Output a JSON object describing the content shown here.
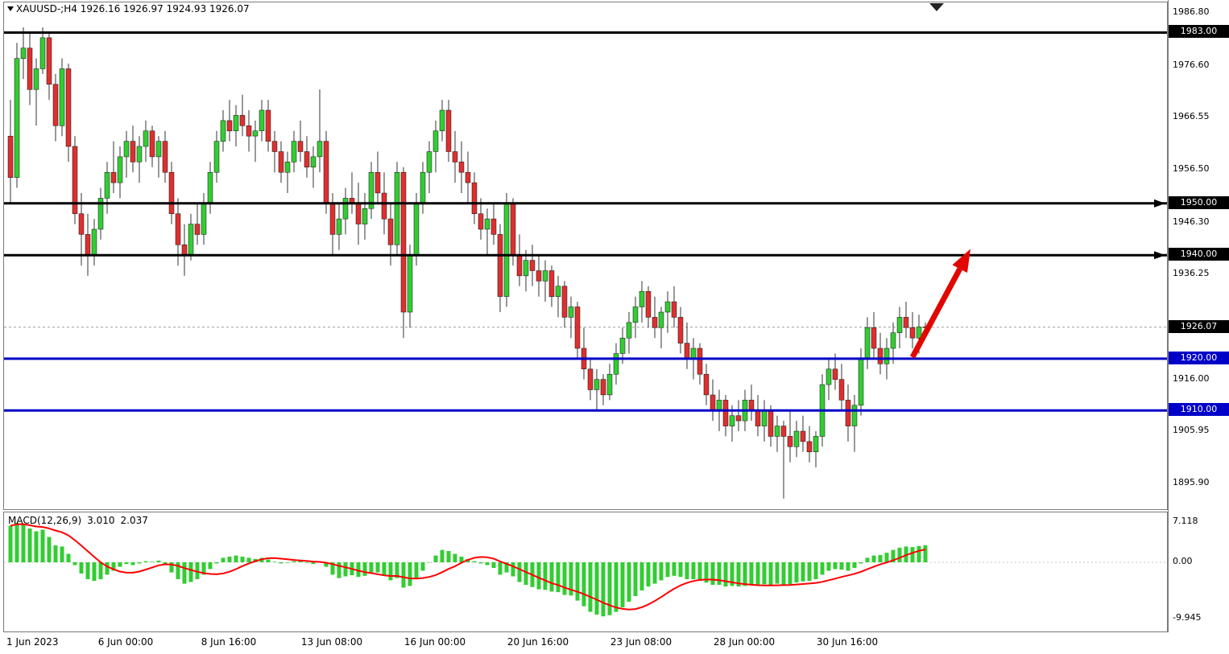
{
  "header": {
    "symbol_line": "XAUUSD-;H4 1926.16 1926.97 1924.93 1926.07",
    "symbol": "XAUUSD-",
    "timeframe": "H4"
  },
  "chart_data": {
    "type": "candlestick",
    "title": "XAUUSD- H4",
    "current_bar": {
      "open": 1926.16,
      "high": 1926.97,
      "low": 1924.93,
      "close": 1926.07
    },
    "current_price": 1926.07,
    "current_price_badge": {
      "label": "1926.07",
      "color": "#000000"
    },
    "price_axis_ticks": [
      "1986.80",
      "1976.60",
      "1966.55",
      "1956.50",
      "1946.30",
      "1936.25",
      "1916.00",
      "1905.95",
      "1895.90"
    ],
    "horizontal_levels": [
      {
        "price": 1983.0,
        "label": "1983.00",
        "color": "#000000",
        "type": "resistance",
        "ray_marker": false
      },
      {
        "price": 1950.0,
        "label": "1950.00",
        "color": "#000000",
        "type": "resistance",
        "ray_marker": true
      },
      {
        "price": 1940.0,
        "label": "1940.00",
        "color": "#000000",
        "type": "resistance",
        "ray_marker": true
      },
      {
        "price": 1920.0,
        "label": "1920.00",
        "color": "#0000C8",
        "type": "support",
        "ray_marker": false
      },
      {
        "price": 1910.0,
        "label": "1910.00",
        "color": "#0000C8",
        "type": "support",
        "ray_marker": false
      }
    ],
    "time_labels": [
      {
        "label": "1 Jun 2023",
        "bar": 0
      },
      {
        "label": "6 Jun 00:00",
        "bar": 18
      },
      {
        "label": "8 Jun 16:00",
        "bar": 34
      },
      {
        "label": "13 Jun 08:00",
        "bar": 50
      },
      {
        "label": "16 Jun 00:00",
        "bar": 66
      },
      {
        "label": "20 Jun 16:00",
        "bar": 82
      },
      {
        "label": "23 Jun 08:00",
        "bar": 98
      },
      {
        "label": "28 Jun 00:00",
        "bar": 114
      },
      {
        "label": "30 Jun 16:00",
        "bar": 130
      }
    ],
    "candles_ohlc": [
      [
        1963,
        1970,
        1950,
        1955
      ],
      [
        1955,
        1981,
        1953,
        1978
      ],
      [
        1978,
        1984,
        1974,
        1980
      ],
      [
        1980,
        1983,
        1969,
        1972
      ],
      [
        1972,
        1978,
        1965,
        1976
      ],
      [
        1976,
        1984,
        1975,
        1982
      ],
      [
        1982,
        1983,
        1970,
        1973
      ],
      [
        1973,
        1975,
        1962,
        1965
      ],
      [
        1965,
        1978,
        1963,
        1976
      ],
      [
        1976,
        1977,
        1958,
        1961
      ],
      [
        1961,
        1963,
        1946,
        1948
      ],
      [
        1948,
        1952,
        1938,
        1944
      ],
      [
        1944,
        1948,
        1936,
        1940
      ],
      [
        1940,
        1947,
        1938,
        1945
      ],
      [
        1945,
        1953,
        1943,
        1951
      ],
      [
        1951,
        1958,
        1948,
        1956
      ],
      [
        1956,
        1962,
        1952,
        1954
      ],
      [
        1954,
        1961,
        1951,
        1959
      ],
      [
        1959,
        1964,
        1955,
        1962
      ],
      [
        1962,
        1965,
        1956,
        1958
      ],
      [
        1958,
        1963,
        1954,
        1961
      ],
      [
        1961,
        1966,
        1958,
        1964
      ],
      [
        1964,
        1965,
        1957,
        1959
      ],
      [
        1959,
        1963,
        1955,
        1962
      ],
      [
        1962,
        1964,
        1954,
        1956
      ],
      [
        1956,
        1958,
        1946,
        1948
      ],
      [
        1948,
        1951,
        1938,
        1942
      ],
      [
        1942,
        1946,
        1936,
        1940
      ],
      [
        1940,
        1948,
        1939,
        1946
      ],
      [
        1946,
        1950,
        1942,
        1944
      ],
      [
        1944,
        1952,
        1942,
        1950
      ],
      [
        1950,
        1958,
        1948,
        1956
      ],
      [
        1956,
        1964,
        1954,
        1962
      ],
      [
        1962,
        1968,
        1960,
        1966
      ],
      [
        1966,
        1970,
        1962,
        1964
      ],
      [
        1964,
        1969,
        1961,
        1967
      ],
      [
        1967,
        1971,
        1963,
        1965
      ],
      [
        1965,
        1968,
        1960,
        1963
      ],
      [
        1963,
        1966,
        1958,
        1964
      ],
      [
        1964,
        1970,
        1962,
        1968
      ],
      [
        1968,
        1970,
        1960,
        1962
      ],
      [
        1962,
        1964,
        1956,
        1960
      ],
      [
        1960,
        1962,
        1954,
        1956
      ],
      [
        1956,
        1960,
        1952,
        1958
      ],
      [
        1958,
        1964,
        1956,
        1962
      ],
      [
        1962,
        1966,
        1958,
        1960
      ],
      [
        1960,
        1963,
        1955,
        1957
      ],
      [
        1957,
        1961,
        1953,
        1959
      ],
      [
        1959,
        1972,
        1956,
        1962
      ],
      [
        1962,
        1964,
        1948,
        1950
      ],
      [
        1950,
        1952,
        1940,
        1944
      ],
      [
        1944,
        1950,
        1941,
        1947
      ],
      [
        1947,
        1953,
        1944,
        1951
      ],
      [
        1951,
        1956,
        1948,
        1950
      ],
      [
        1950,
        1954,
        1942,
        1946
      ],
      [
        1946,
        1952,
        1943,
        1949
      ],
      [
        1949,
        1958,
        1947,
        1956
      ],
      [
        1956,
        1960,
        1950,
        1952
      ],
      [
        1952,
        1956,
        1944,
        1947
      ],
      [
        1947,
        1950,
        1938,
        1942
      ],
      [
        1942,
        1958,
        1940,
        1956
      ],
      [
        1956,
        1957,
        1924,
        1929
      ],
      [
        1929,
        1942,
        1926,
        1940
      ],
      [
        1940,
        1952,
        1938,
        1950
      ],
      [
        1950,
        1958,
        1948,
        1956
      ],
      [
        1956,
        1962,
        1952,
        1960
      ],
      [
        1960,
        1966,
        1956,
        1964
      ],
      [
        1964,
        1970,
        1962,
        1968
      ],
      [
        1968,
        1970,
        1958,
        1960
      ],
      [
        1960,
        1964,
        1954,
        1958
      ],
      [
        1958,
        1962,
        1952,
        1956
      ],
      [
        1956,
        1960,
        1950,
        1954
      ],
      [
        1954,
        1956,
        1946,
        1948
      ],
      [
        1948,
        1951,
        1943,
        1945
      ],
      [
        1945,
        1949,
        1940,
        1947
      ],
      [
        1947,
        1950,
        1942,
        1944
      ],
      [
        1944,
        1946,
        1929,
        1932
      ],
      [
        1932,
        1952,
        1930,
        1950
      ],
      [
        1950,
        1951,
        1938,
        1940
      ],
      [
        1940,
        1944,
        1934,
        1936
      ],
      [
        1936,
        1941,
        1933,
        1939
      ],
      [
        1939,
        1942,
        1934,
        1937
      ],
      [
        1937,
        1940,
        1932,
        1935
      ],
      [
        1935,
        1939,
        1931,
        1937
      ],
      [
        1937,
        1938,
        1930,
        1932
      ],
      [
        1932,
        1936,
        1928,
        1934
      ],
      [
        1934,
        1935,
        1926,
        1928
      ],
      [
        1928,
        1932,
        1924,
        1930
      ],
      [
        1930,
        1931,
        1920,
        1922
      ],
      [
        1922,
        1926,
        1916,
        1918
      ],
      [
        1918,
        1920,
        1912,
        1914
      ],
      [
        1914,
        1918,
        1910,
        1916
      ],
      [
        1916,
        1917,
        1911,
        1913
      ],
      [
        1913,
        1919,
        1912,
        1917
      ],
      [
        1917,
        1923,
        1915,
        1921
      ],
      [
        1921,
        1926,
        1919,
        1924
      ],
      [
        1924,
        1929,
        1921,
        1927
      ],
      [
        1927,
        1932,
        1924,
        1930
      ],
      [
        1930,
        1935,
        1927,
        1933
      ],
      [
        1933,
        1934,
        1926,
        1928
      ],
      [
        1928,
        1932,
        1924,
        1926
      ],
      [
        1926,
        1930,
        1922,
        1929
      ],
      [
        1929,
        1933,
        1925,
        1931
      ],
      [
        1931,
        1934,
        1926,
        1928
      ],
      [
        1928,
        1930,
        1921,
        1923
      ],
      [
        1923,
        1927,
        1918,
        1920
      ],
      [
        1920,
        1924,
        1916,
        1922
      ],
      [
        1922,
        1923,
        1915,
        1917
      ],
      [
        1917,
        1919,
        1911,
        1913
      ],
      [
        1913,
        1916,
        1908,
        1910
      ],
      [
        1910,
        1914,
        1906,
        1912
      ],
      [
        1912,
        1913,
        1905,
        1907
      ],
      [
        1907,
        1911,
        1904,
        1909
      ],
      [
        1909,
        1912,
        1906,
        1908
      ],
      [
        1908,
        1914,
        1906,
        1912
      ],
      [
        1912,
        1915,
        1908,
        1910
      ],
      [
        1910,
        1913,
        1905,
        1907
      ],
      [
        1907,
        1912,
        1904,
        1910
      ],
      [
        1910,
        1911,
        1903,
        1905
      ],
      [
        1905,
        1909,
        1902,
        1907
      ],
      [
        1907,
        1908,
        1893,
        1905
      ],
      [
        1905,
        1910,
        1900,
        1903
      ],
      [
        1903,
        1908,
        1901,
        1906
      ],
      [
        1906,
        1909,
        1902,
        1904
      ],
      [
        1904,
        1907,
        1900,
        1902
      ],
      [
        1902,
        1906,
        1899,
        1905
      ],
      [
        1905,
        1917,
        1903,
        1915
      ],
      [
        1915,
        1920,
        1912,
        1918
      ],
      [
        1918,
        1921,
        1914,
        1916
      ],
      [
        1916,
        1919,
        1910,
        1912
      ],
      [
        1912,
        1915,
        1904,
        1907
      ],
      [
        1907,
        1913,
        1902,
        1911
      ],
      [
        1911,
        1922,
        1909,
        1920
      ],
      [
        1920,
        1928,
        1918,
        1926
      ],
      [
        1926,
        1929,
        1920,
        1922
      ],
      [
        1922,
        1925,
        1917,
        1919
      ],
      [
        1919,
        1924,
        1916,
        1922
      ],
      [
        1922,
        1927,
        1919,
        1925
      ],
      [
        1925,
        1930,
        1922,
        1928
      ],
      [
        1928,
        1931,
        1924,
        1926
      ],
      [
        1926,
        1929,
        1922,
        1924
      ],
      [
        1924,
        1928.5,
        1921,
        1926.16
      ],
      [
        1926.16,
        1926.97,
        1924.93,
        1926.07
      ]
    ],
    "trend_arrow": {
      "from": {
        "bar": 140,
        "price": 1920.3
      },
      "to": {
        "bar": 149,
        "price": 1941.2
      },
      "color": "#E10600"
    },
    "macd": {
      "label": "MACD(12,26,9)",
      "main_value": "3.010",
      "signal_value": "2.037",
      "axis_ticks": [
        "7.118",
        "0.00",
        "-9.945"
      ],
      "histogram": [
        6.5,
        7.0,
        6.8,
        6.0,
        5.5,
        5.8,
        4.5,
        3.0,
        2.8,
        1.5,
        -0.5,
        -2.0,
        -3.0,
        -3.3,
        -3.0,
        -2.2,
        -1.5,
        -0.8,
        -0.3,
        -0.5,
        -0.2,
        0.2,
        0.1,
        0.3,
        -0.5,
        -1.8,
        -3.0,
        -3.8,
        -3.5,
        -3.0,
        -2.2,
        -1.2,
        -0.2,
        0.8,
        1.0,
        1.2,
        1.0,
        0.8,
        0.6,
        0.8,
        0.5,
        0.1,
        -0.2,
        -0.1,
        0.2,
        0.3,
        -0.1,
        -0.3,
        0.2,
        -0.8,
        -2.2,
        -2.8,
        -2.5,
        -2.3,
        -2.6,
        -2.4,
        -1.8,
        -1.8,
        -2.4,
        -3.2,
        -2.8,
        -4.5,
        -4.2,
        -3.0,
        -1.5,
        0.0,
        1.2,
        2.2,
        2.0,
        1.5,
        1.0,
        0.6,
        0.2,
        -0.2,
        -0.5,
        -1.0,
        -2.2,
        -1.8,
        -2.5,
        -3.5,
        -4.0,
        -4.4,
        -4.8,
        -4.9,
        -5.2,
        -5.3,
        -5.8,
        -5.9,
        -6.8,
        -7.8,
        -8.8,
        -9.3,
        -9.6,
        -9.4,
        -8.8,
        -8.0,
        -7.0,
        -6.0,
        -5.0,
        -4.3,
        -3.8,
        -3.2,
        -2.6,
        -2.4,
        -2.6,
        -3.0,
        -3.0,
        -3.3,
        -3.6,
        -4.0,
        -4.0,
        -4.3,
        -4.2,
        -4.3,
        -4.2,
        -4.0,
        -4.1,
        -3.9,
        -4.0,
        -3.8,
        -4.0,
        -3.9,
        -3.6,
        -3.4,
        -3.3,
        -3.0,
        -2.2,
        -1.5,
        -1.2,
        -1.3,
        -1.5,
        -1.0,
        -0.2,
        0.8,
        1.2,
        1.3,
        1.7,
        2.2,
        2.6,
        2.8,
        2.7,
        2.9,
        3.01
      ]
    },
    "colors": {
      "bull": "#33CC33",
      "bear": "#DD3030",
      "wick": "#333333",
      "level_black": "#000000",
      "level_blue": "#0000C8",
      "signal_line": "#FF0000",
      "histogram": "#33CC33",
      "current_price_line": "#9A9A9A"
    }
  }
}
